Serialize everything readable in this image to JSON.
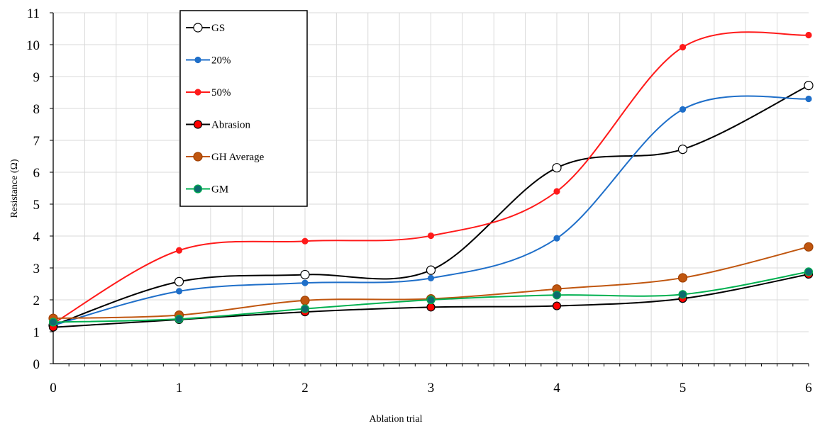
{
  "chart_data": {
    "type": "line",
    "xlabel": "Ablation trial",
    "ylabel": "Resistance (Ω)",
    "x": [
      0,
      1,
      2,
      3,
      4,
      5,
      6
    ],
    "xlim": [
      0,
      6
    ],
    "ylim": [
      0,
      11
    ],
    "x_ticks": [
      "0",
      "1",
      "2",
      "3",
      "4",
      "5",
      "6"
    ],
    "y_ticks": [
      "0",
      "1",
      "2",
      "3",
      "4",
      "5",
      "6",
      "7",
      "8",
      "9",
      "10",
      "11"
    ],
    "grid": true,
    "legend": "top-left",
    "series": [
      {
        "name": "GS",
        "values": [
          1.2,
          2.57,
          2.79,
          2.93,
          6.14,
          6.72,
          8.72
        ],
        "color": "#000000",
        "marker_fill": "#ffffff",
        "marker_stroke": "#000000",
        "marker_size": "large"
      },
      {
        "name": "20%",
        "values": [
          1.2,
          2.27,
          2.53,
          2.68,
          3.93,
          7.97,
          8.3
        ],
        "color": "#1f6fc9",
        "marker_fill": "#1f6fc9",
        "marker_stroke": "#1f6fc9",
        "marker_size": "small"
      },
      {
        "name": "50%",
        "values": [
          1.26,
          3.55,
          3.84,
          4.01,
          5.4,
          9.92,
          10.3
        ],
        "color": "#ff1a1a",
        "marker_fill": "#ff1a1a",
        "marker_stroke": "#ff1a1a",
        "marker_size": "small"
      },
      {
        "name": "Abrasion",
        "values": [
          1.14,
          1.38,
          1.62,
          1.77,
          1.81,
          2.04,
          2.8
        ],
        "color": "#000000",
        "marker_fill": "#ff0000",
        "marker_stroke": "#000000",
        "marker_size": "medium"
      },
      {
        "name": "GH Average",
        "values": [
          1.42,
          1.52,
          1.98,
          2.03,
          2.34,
          2.69,
          3.66
        ],
        "color": "#c0560f",
        "marker_fill": "#c0560f",
        "marker_stroke": "#a04000",
        "marker_size": "large"
      },
      {
        "name": "GM",
        "values": [
          1.3,
          1.4,
          1.72,
          2.0,
          2.15,
          2.17,
          2.88
        ],
        "color": "#00b050",
        "marker_fill": "#0e6b6e",
        "marker_stroke": "#00b050",
        "marker_size": "medium"
      }
    ]
  }
}
